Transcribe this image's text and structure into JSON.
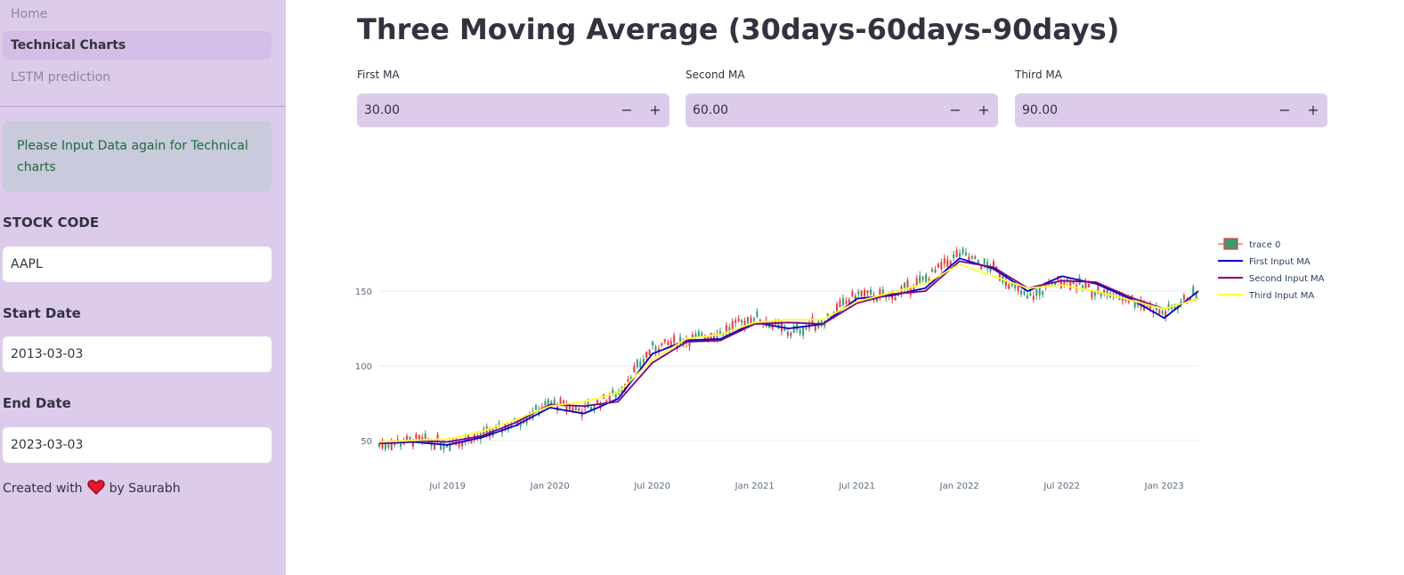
{
  "sidebar": {
    "nav": [
      {
        "label": "Home",
        "active": false
      },
      {
        "label": "Technical Charts",
        "active": true
      },
      {
        "label": "LSTM prediction",
        "active": false
      }
    ],
    "info_message": "Please Input Data again for Technical charts",
    "stock_code_label": "STOCK CODE",
    "stock_code_value": "AAPL",
    "start_date_label": "Start Date",
    "start_date_value": "2013-03-03",
    "end_date_label": "End Date",
    "end_date_value": "2023-03-03",
    "credit_prefix": "Created with",
    "credit_suffix": "by Saurabh",
    "credit_icon": "heart-icon"
  },
  "main": {
    "title": "Three Moving Average (30days-60days-90days)",
    "inputs": [
      {
        "label": "First MA",
        "value": "30.00",
        "minus": "−",
        "plus": "+"
      },
      {
        "label": "Second MA",
        "value": "60.00",
        "minus": "−",
        "plus": "+"
      },
      {
        "label": "Third MA",
        "value": "90.00",
        "minus": "−",
        "plus": "+"
      }
    ]
  },
  "colors": {
    "sidebar_bg": "#ddcbec",
    "candle_up": "#3d9970",
    "candle_down": "#e83b3b",
    "first_ma": "#0000cc",
    "second_ma": "#800080",
    "third_ma": "#ffff33"
  },
  "chart_data": {
    "type": "line",
    "x_ticks": [
      "Jul 2019",
      "Jan 2020",
      "Jul 2020",
      "Jan 2021",
      "Jul 2021",
      "Jan 2022",
      "Jul 2022",
      "Jan 2023"
    ],
    "y_ticks": [
      50,
      100,
      150
    ],
    "ylim": [
      35,
      190
    ],
    "grid": true,
    "legend_position": "right",
    "x_dates": [
      "2019-03",
      "2019-05",
      "2019-07",
      "2019-09",
      "2019-11",
      "2020-01",
      "2020-03",
      "2020-05",
      "2020-07",
      "2020-09",
      "2020-11",
      "2021-01",
      "2021-03",
      "2021-05",
      "2021-07",
      "2021-09",
      "2021-11",
      "2022-01",
      "2022-03",
      "2022-05",
      "2022-07",
      "2022-09",
      "2022-11",
      "2023-01",
      "2023-03"
    ],
    "series": [
      {
        "name": "trace 0",
        "kind": "candlestick",
        "color_key": "candle_up",
        "values": [
          47,
          50,
          48,
          53,
          62,
          75,
          70,
          82,
          112,
          117,
          122,
          133,
          122,
          130,
          148,
          146,
          158,
          175,
          165,
          145,
          158,
          150,
          145,
          135,
          150
        ]
      },
      {
        "name": "First Input MA",
        "kind": "line",
        "color_key": "first_ma",
        "values": [
          48,
          49,
          47,
          52,
          60,
          72,
          68,
          78,
          108,
          117,
          118,
          129,
          125,
          128,
          145,
          147,
          152,
          172,
          165,
          150,
          160,
          155,
          145,
          132,
          150
        ]
      },
      {
        "name": "Second Input MA",
        "kind": "line",
        "color_key": "second_ma",
        "values": [
          48,
          50,
          49,
          53,
          62,
          74,
          73,
          76,
          102,
          116,
          117,
          128,
          129,
          128,
          142,
          148,
          150,
          170,
          166,
          152,
          157,
          156,
          146,
          138,
          145
        ]
      },
      {
        "name": "Third Input MA",
        "kind": "line",
        "color_key": "third_ma",
        "values": [
          49,
          50,
          51,
          56,
          64,
          73,
          76,
          82,
          104,
          118,
          121,
          129,
          131,
          131,
          143,
          149,
          155,
          168,
          160,
          152,
          154,
          150,
          144,
          138,
          145
        ]
      }
    ]
  }
}
